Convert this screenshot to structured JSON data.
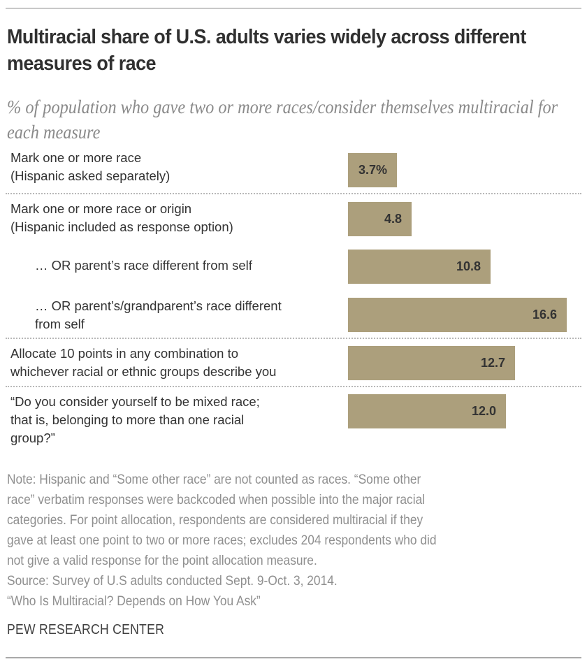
{
  "chart_data": {
    "type": "bar",
    "orientation": "horizontal",
    "title": "Multiracial share of U.S. adults varies widely across different measures of race",
    "subtitle": "% of population who gave two or more races/consider themselves multiracial for each measure",
    "xlabel": "",
    "ylabel": "",
    "xlim": [
      0,
      16.6
    ],
    "grid": false,
    "legend": "none",
    "bar_color": "#ac9f7c",
    "categories": [
      [
        "Mark one or more race",
        "(Hispanic asked separately)"
      ],
      [
        "Mark one or more race or origin",
        "(Hispanic included as response option)"
      ],
      [
        "… OR parent’s race different from self"
      ],
      [
        "… OR parent’s/grandparent’s race different",
        "from self"
      ],
      [
        "Allocate 10 points in any combination to",
        "whichever racial or ethnic groups describe you"
      ],
      [
        "“Do you consider yourself to be mixed race;",
        "that is, belonging to more than one racial",
        "group?”"
      ]
    ],
    "values": [
      3.7,
      4.8,
      10.8,
      16.6,
      12.7,
      12.0
    ],
    "value_labels": [
      "3.7%",
      "4.8",
      "10.8",
      "16.6",
      "12.7",
      "12.0"
    ],
    "indented": [
      false,
      false,
      true,
      true,
      false,
      false
    ],
    "groups_separated_after": [
      0,
      3,
      4
    ]
  },
  "notes": [
    "Note: Hispanic and “Some other race” are not counted as races. “Some other",
    "race” verbatim responses were backcoded when possible into the major racial",
    "categories. For point allocation, respondents are considered multiracial if they",
    "gave at least one point to two or more races; excludes 204 respondents who did",
    "not give a valid response for the point allocation measure.",
    "Source: Survey of U.S adults conducted Sept. 9-Oct. 3, 2014.",
    "“Who Is Multiracial? Depends on How You Ask”"
  ],
  "source_org": "PEW RESEARCH CENTER"
}
